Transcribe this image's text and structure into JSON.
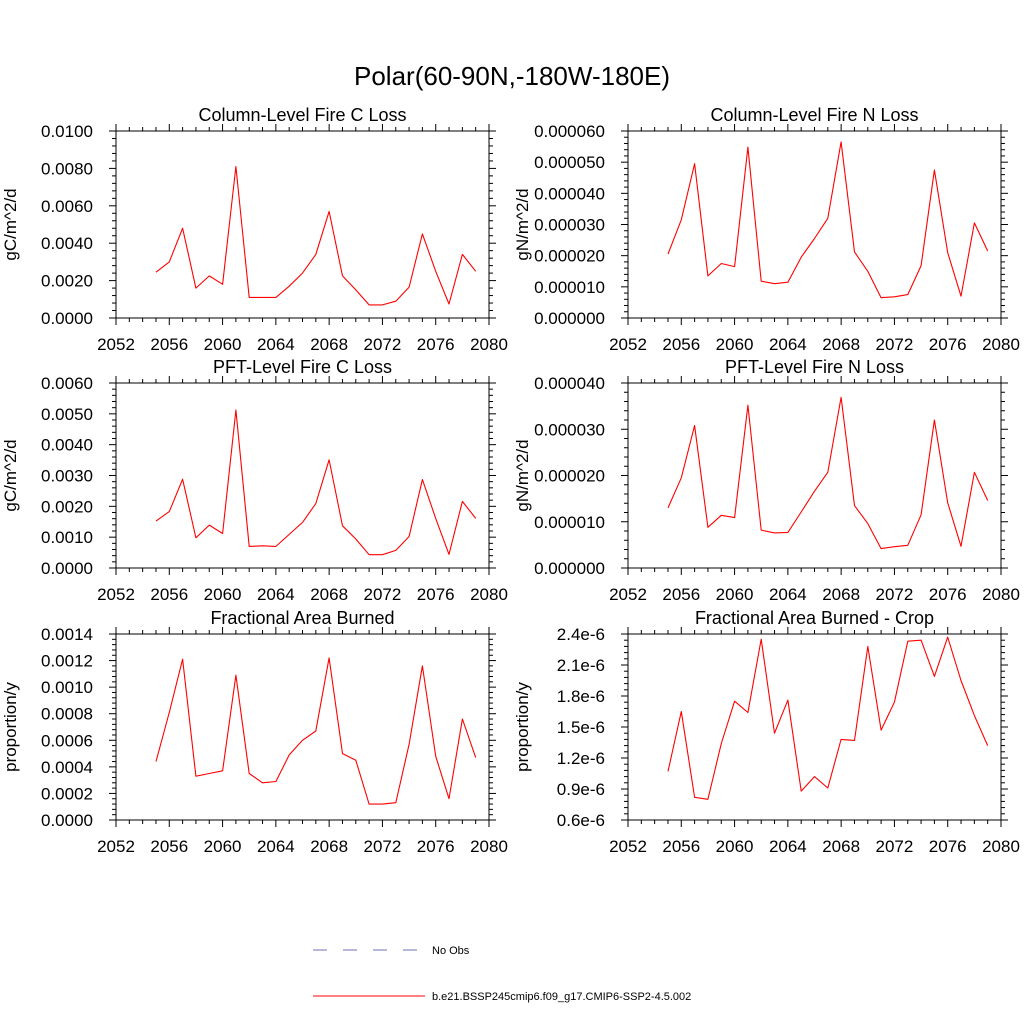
{
  "title": "Polar(60-90N,-180W-180E)",
  "colors": {
    "series": "#ff0000",
    "obs": "#6f6fb7",
    "axis": "#000000"
  },
  "legend": {
    "items": [
      {
        "label": "No Obs",
        "style": "dashed",
        "color": "#6f6fb7"
      },
      {
        "label": "b.e21.BSSP245cmip6.f09_g17.CMIP6-SSP2-4.5.002",
        "style": "solid",
        "color": "#ff0000"
      }
    ]
  },
  "chart_data": [
    {
      "type": "line",
      "title": "Column-Level Fire C Loss",
      "ylabel": "gC/m^2/d",
      "xlabel": "",
      "xlim": [
        2052,
        2080
      ],
      "xticks": [
        "2052",
        "2056",
        "2060",
        "2064",
        "2068",
        "2072",
        "2076",
        "2080"
      ],
      "ylim": [
        0,
        0.01
      ],
      "yticks": [
        "0.0000",
        "0.0020",
        "0.0040",
        "0.0060",
        "0.0080",
        "0.0100"
      ],
      "x": [
        2055,
        2056,
        2057,
        2058,
        2059,
        2060,
        2061,
        2062,
        2063,
        2064,
        2065,
        2066,
        2067,
        2068,
        2069,
        2070,
        2071,
        2072,
        2073,
        2074,
        2075,
        2076,
        2077,
        2078,
        2079
      ],
      "series": [
        {
          "name": "b.e21.BSSP245cmip6.f09_g17.CMIP6-SSP2-4.5.002",
          "values": [
            0.00245,
            0.003,
            0.0048,
            0.0016,
            0.00225,
            0.0018,
            0.0081,
            0.0011,
            0.0011,
            0.0011,
            0.0017,
            0.0024,
            0.0034,
            0.0057,
            0.00225,
            0.0015,
            0.0007,
            0.0007,
            0.0009,
            0.00165,
            0.0045,
            0.0025,
            0.00075,
            0.0034,
            0.0025
          ]
        }
      ]
    },
    {
      "type": "line",
      "title": "Column-Level Fire N Loss",
      "ylabel": "gN/m^2/d",
      "xlabel": "",
      "xlim": [
        2052,
        2080
      ],
      "xticks": [
        "2052",
        "2056",
        "2060",
        "2064",
        "2068",
        "2072",
        "2076",
        "2080"
      ],
      "ylim": [
        0,
        6e-05
      ],
      "yticks": [
        "0.000000",
        "0.000010",
        "0.000020",
        "0.000030",
        "0.000040",
        "0.000050",
        "0.000060"
      ],
      "x": [
        2055,
        2056,
        2057,
        2058,
        2059,
        2060,
        2061,
        2062,
        2063,
        2064,
        2065,
        2066,
        2067,
        2068,
        2069,
        2070,
        2071,
        2072,
        2073,
        2074,
        2075,
        2076,
        2077,
        2078,
        2079
      ],
      "series": [
        {
          "name": "b.e21.BSSP245cmip6.f09_g17.CMIP6-SSP2-4.5.002",
          "values": [
            2.05e-05,
            3.15e-05,
            4.95e-05,
            1.35e-05,
            1.75e-05,
            1.65e-05,
            5.48e-05,
            1.18e-05,
            1.1e-05,
            1.15e-05,
            1.95e-05,
            2.55e-05,
            3.2e-05,
            5.65e-05,
            2.12e-05,
            1.5e-05,
            6.5e-06,
            6.8e-06,
            7.5e-06,
            1.68e-05,
            4.75e-05,
            2.1e-05,
            7e-06,
            3.05e-05,
            2.15e-05
          ]
        }
      ]
    },
    {
      "type": "line",
      "title": "PFT-Level Fire C Loss",
      "ylabel": "gC/m^2/d",
      "xlabel": "",
      "xlim": [
        2052,
        2080
      ],
      "xticks": [
        "2052",
        "2056",
        "2060",
        "2064",
        "2068",
        "2072",
        "2076",
        "2080"
      ],
      "ylim": [
        0,
        0.006
      ],
      "yticks": [
        "0.0000",
        "0.0010",
        "0.0020",
        "0.0030",
        "0.0040",
        "0.0050",
        "0.0060"
      ],
      "x": [
        2055,
        2056,
        2057,
        2058,
        2059,
        2060,
        2061,
        2062,
        2063,
        2064,
        2065,
        2066,
        2067,
        2068,
        2069,
        2070,
        2071,
        2072,
        2073,
        2074,
        2075,
        2076,
        2077,
        2078,
        2079
      ],
      "series": [
        {
          "name": "b.e21.BSSP245cmip6.f09_g17.CMIP6-SSP2-4.5.002",
          "values": [
            0.00152,
            0.00183,
            0.00288,
            0.00098,
            0.00139,
            0.00112,
            0.00512,
            0.0007,
            0.00072,
            0.0007,
            0.00109,
            0.00148,
            0.00209,
            0.00351,
            0.00137,
            0.00094,
            0.00043,
            0.00043,
            0.00057,
            0.00102,
            0.00287,
            0.00161,
            0.00044,
            0.00216,
            0.00161
          ]
        }
      ]
    },
    {
      "type": "line",
      "title": "PFT-Level Fire N Loss",
      "ylabel": "gN/m^2/d",
      "xlabel": "",
      "xlim": [
        2052,
        2080
      ],
      "xticks": [
        "2052",
        "2056",
        "2060",
        "2064",
        "2068",
        "2072",
        "2076",
        "2080"
      ],
      "ylim": [
        0,
        4e-05
      ],
      "yticks": [
        "0.000000",
        "0.000010",
        "0.000020",
        "0.000030",
        "0.000040"
      ],
      "x": [
        2055,
        2056,
        2057,
        2058,
        2059,
        2060,
        2061,
        2062,
        2063,
        2064,
        2065,
        2066,
        2067,
        2068,
        2069,
        2070,
        2071,
        2072,
        2073,
        2074,
        2075,
        2076,
        2077,
        2078,
        2079
      ],
      "series": [
        {
          "name": "b.e21.BSSP245cmip6.f09_g17.CMIP6-SSP2-4.5.002",
          "values": [
            1.3e-05,
            1.95e-05,
            3.08e-05,
            8.8e-06,
            1.14e-05,
            1.09e-05,
            3.52e-05,
            8.2e-06,
            7.6e-06,
            7.7e-06,
            1.21e-05,
            1.66e-05,
            2.07e-05,
            3.69e-05,
            1.35e-05,
            9.6e-06,
            4.2e-06,
            4.6e-06,
            4.9e-06,
            1.15e-05,
            3.2e-05,
            1.41e-05,
            4.7e-06,
            2.07e-05,
            1.46e-05
          ]
        }
      ]
    },
    {
      "type": "line",
      "title": "Fractional Area Burned",
      "ylabel": "proportion/y",
      "xlabel": "",
      "xlim": [
        2052,
        2080
      ],
      "xticks": [
        "2052",
        "2056",
        "2060",
        "2064",
        "2068",
        "2072",
        "2076",
        "2080"
      ],
      "ylim": [
        0,
        0.0014
      ],
      "yticks": [
        "0.0000",
        "0.0002",
        "0.0004",
        "0.0006",
        "0.0008",
        "0.0010",
        "0.0012",
        "0.0014"
      ],
      "x": [
        2055,
        2056,
        2057,
        2058,
        2059,
        2060,
        2061,
        2062,
        2063,
        2064,
        2065,
        2066,
        2067,
        2068,
        2069,
        2070,
        2071,
        2072,
        2073,
        2074,
        2075,
        2076,
        2077,
        2078,
        2079
      ],
      "series": [
        {
          "name": "b.e21.BSSP245cmip6.f09_g17.CMIP6-SSP2-4.5.002",
          "values": [
            0.00044,
            0.00081,
            0.00121,
            0.00033,
            0.00035,
            0.00037,
            0.00109,
            0.00035,
            0.00028,
            0.00029,
            0.00049,
            0.0006,
            0.00067,
            0.00122,
            0.0005,
            0.00045,
            0.00012,
            0.00012,
            0.00013,
            0.00057,
            0.00116,
            0.00048,
            0.00016,
            0.00076,
            0.00047
          ]
        }
      ]
    },
    {
      "type": "line",
      "title": "Fractional Area Burned - Crop",
      "ylabel": "proportion/y",
      "xlabel": "",
      "xlim": [
        2052,
        2080
      ],
      "xticks": [
        "2052",
        "2056",
        "2060",
        "2064",
        "2068",
        "2072",
        "2076",
        "2080"
      ],
      "ylim": [
        6e-07,
        2.4e-06
      ],
      "yticks": [
        "0.6e-6",
        "0.9e-6",
        "1.2e-6",
        "1.5e-6",
        "1.8e-6",
        "2.1e-6",
        "2.4e-6"
      ],
      "x": [
        2055,
        2056,
        2057,
        2058,
        2059,
        2060,
        2061,
        2062,
        2063,
        2064,
        2065,
        2066,
        2067,
        2068,
        2069,
        2070,
        2071,
        2072,
        2073,
        2074,
        2075,
        2076,
        2077,
        2078,
        2079
      ],
      "series": [
        {
          "name": "b.e21.BSSP245cmip6.f09_g17.CMIP6-SSP2-4.5.002",
          "values": [
            1.07e-06,
            1.65e-06,
            8.2e-07,
            8e-07,
            1.34e-06,
            1.75e-06,
            1.64e-06,
            2.35e-06,
            1.44e-06,
            1.76e-06,
            8.8e-07,
            1.02e-06,
            9.1e-07,
            1.38e-06,
            1.37e-06,
            2.28e-06,
            1.47e-06,
            1.74e-06,
            2.33e-06,
            2.34e-06,
            1.99e-06,
            2.37e-06,
            1.95e-06,
            1.61e-06,
            1.32e-06
          ]
        }
      ]
    }
  ]
}
